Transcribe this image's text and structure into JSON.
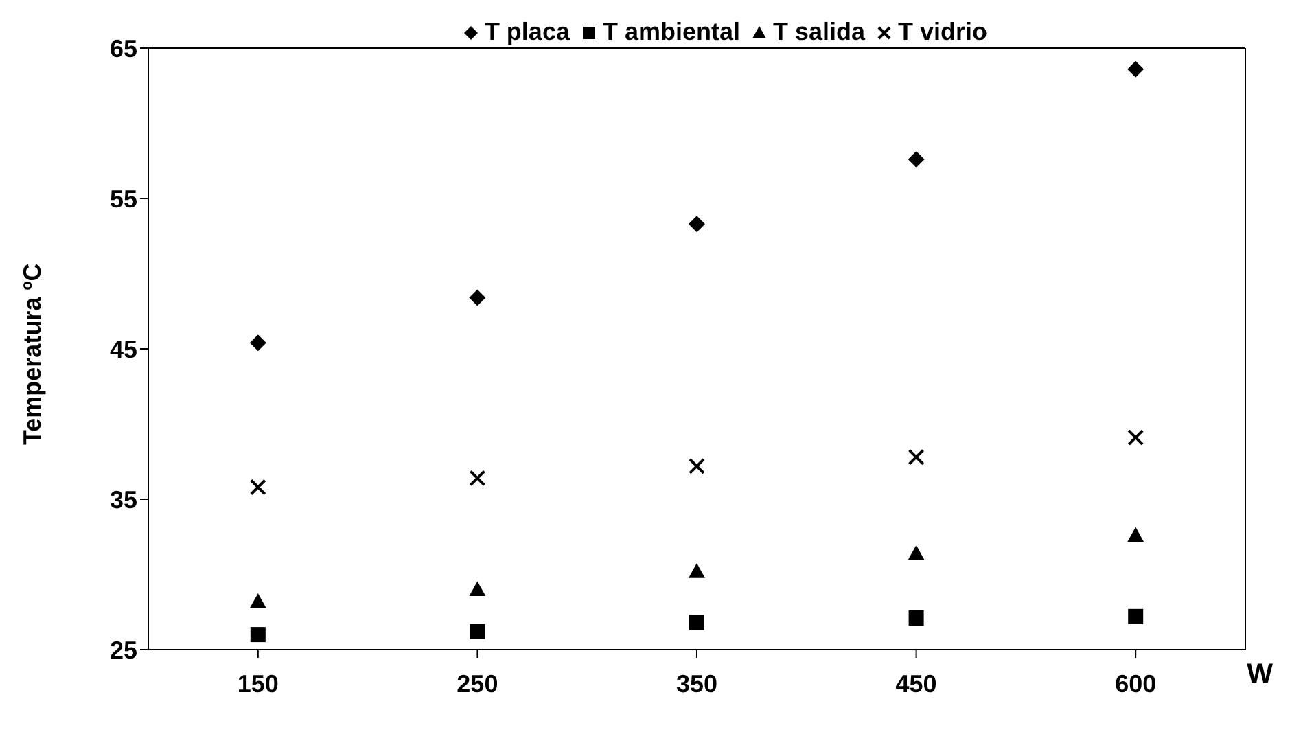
{
  "chart_data": {
    "type": "scatter",
    "xlabel": "W",
    "ylabel": "Temperatura ºC",
    "categories": [
      "150",
      "250",
      "350",
      "450",
      "600"
    ],
    "series": [
      {
        "name": "T placa",
        "color": "#000000",
        "marker": "diamond",
        "values": [
          45.4,
          48.4,
          53.3,
          57.6,
          63.6
        ]
      },
      {
        "name": "T ambiental",
        "color": "#000000",
        "marker": "square",
        "values": [
          26.0,
          26.2,
          26.8,
          27.1,
          27.2
        ]
      },
      {
        "name": "T salida",
        "color": "#000000",
        "marker": "triangle",
        "values": [
          28.2,
          29.0,
          30.2,
          31.4,
          32.6
        ]
      },
      {
        "name": "T vidrio",
        "color": "#000000",
        "marker": "cross",
        "values": [
          35.8,
          36.4,
          37.2,
          37.8,
          39.1
        ]
      }
    ],
    "ylim": [
      25,
      65
    ],
    "yticks": [
      25,
      35,
      45,
      55,
      65
    ],
    "grid": false,
    "legend": "top"
  }
}
